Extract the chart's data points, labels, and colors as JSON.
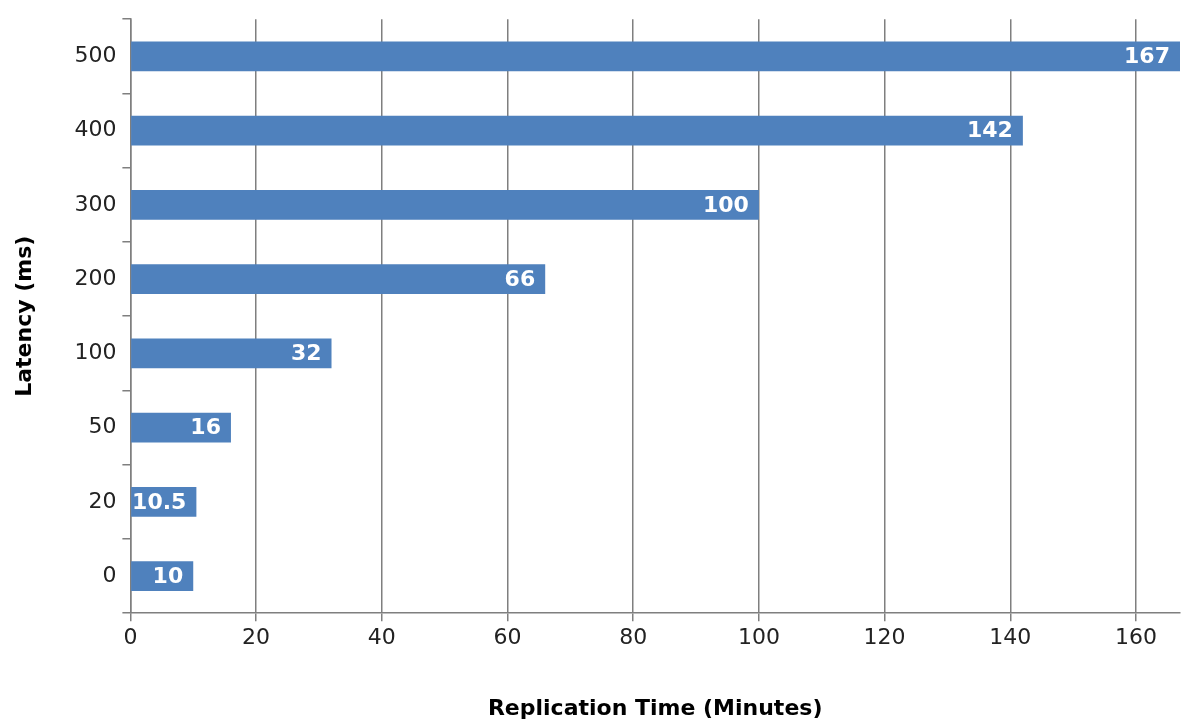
{
  "chart_data": {
    "type": "bar",
    "orientation": "horizontal",
    "xlabel": "Replication Time (Minutes)",
    "ylabel": "Latency (ms)",
    "categories": [
      "500",
      "400",
      "300",
      "200",
      "100",
      "50",
      "20",
      "0"
    ],
    "values": [
      167,
      142,
      100,
      66,
      32,
      16,
      10.5,
      10
    ],
    "color": "#4f81bd",
    "xlim": [
      0,
      167
    ],
    "xticks": [
      0,
      20,
      40,
      60,
      80,
      100,
      120,
      140,
      160
    ],
    "grid": "x",
    "legend": false,
    "data_labels": true
  }
}
